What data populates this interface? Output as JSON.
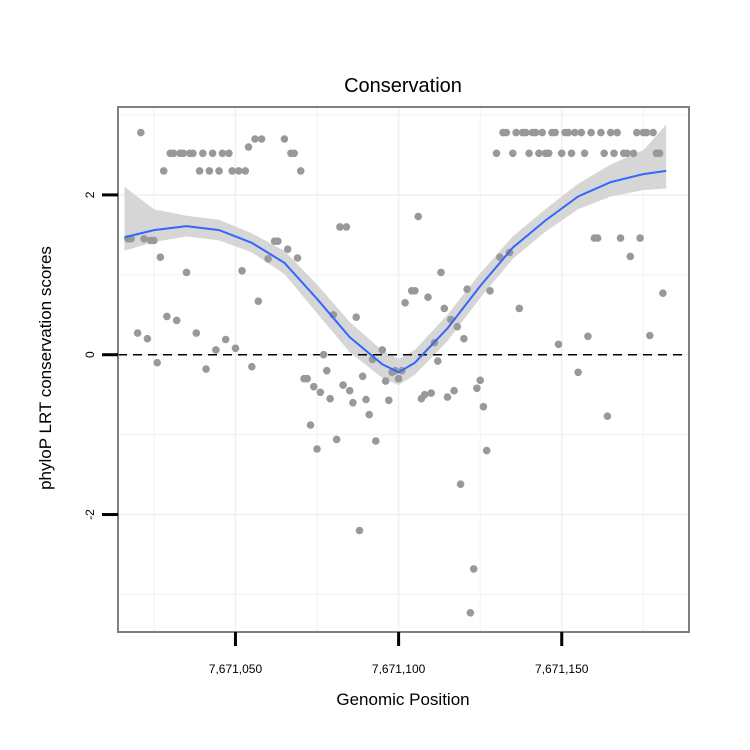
{
  "chart_data": {
    "type": "scatter",
    "title": "Conservation",
    "xlabel": "Genomic Position",
    "ylabel": "phyloP LRT conservation scores",
    "xlim": [
      7671014,
      7671189
    ],
    "ylim": [
      -3.47,
      3.1
    ],
    "x_ticks": [
      7671050,
      7671100,
      7671150
    ],
    "x_tick_labels": [
      "7,671,050",
      "7,671,100",
      "7,671,150"
    ],
    "y_ticks": [
      -2,
      0,
      2
    ],
    "y_tick_labels": [
      "-2",
      "0",
      "2"
    ],
    "grid": true,
    "reference_line": {
      "y": 0,
      "style": "dashed"
    },
    "colors": {
      "points": "#999999",
      "smooth": "#3366ff",
      "ribbon": "#d6d6d6",
      "grid": "#f0f0f0",
      "panel_border": "#7f7f7f",
      "axis": "#000000"
    },
    "points": [
      [
        7671017,
        1.45
      ],
      [
        7671018,
        1.45
      ],
      [
        7671020,
        0.27
      ],
      [
        7671021,
        2.78
      ],
      [
        7671022,
        1.45
      ],
      [
        7671023,
        0.2
      ],
      [
        7671024,
        1.43
      ],
      [
        7671025,
        1.43
      ],
      [
        7671026,
        -0.1
      ],
      [
        7671027,
        1.22
      ],
      [
        7671028,
        2.3
      ],
      [
        7671029,
        0.48
      ],
      [
        7671030,
        2.52
      ],
      [
        7671031,
        2.52
      ],
      [
        7671032,
        0.43
      ],
      [
        7671033,
        2.52
      ],
      [
        7671034,
        2.52
      ],
      [
        7671035,
        1.03
      ],
      [
        7671036,
        2.52
      ],
      [
        7671037,
        2.52
      ],
      [
        7671038,
        0.27
      ],
      [
        7671039,
        2.3
      ],
      [
        7671040,
        2.52
      ],
      [
        7671041,
        -0.18
      ],
      [
        7671042,
        2.3
      ],
      [
        7671043,
        2.52
      ],
      [
        7671044,
        0.06
      ],
      [
        7671045,
        2.3
      ],
      [
        7671046,
        2.52
      ],
      [
        7671047,
        0.19
      ],
      [
        7671048,
        2.52
      ],
      [
        7671049,
        2.3
      ],
      [
        7671050,
        0.08
      ],
      [
        7671051,
        2.3
      ],
      [
        7671052,
        1.05
      ],
      [
        7671053,
        2.3
      ],
      [
        7671054,
        2.6
      ],
      [
        7671055,
        -0.15
      ],
      [
        7671056,
        2.7
      ],
      [
        7671057,
        0.67
      ],
      [
        7671058,
        2.7
      ],
      [
        7671060,
        1.2
      ],
      [
        7671062,
        1.42
      ],
      [
        7671063,
        1.42
      ],
      [
        7671065,
        2.7
      ],
      [
        7671066,
        1.32
      ],
      [
        7671067,
        2.52
      ],
      [
        7671068,
        2.52
      ],
      [
        7671069,
        1.21
      ],
      [
        7671070,
        2.3
      ],
      [
        7671071,
        -0.3
      ],
      [
        7671072,
        -0.3
      ],
      [
        7671073,
        -0.88
      ],
      [
        7671074,
        -0.4
      ],
      [
        7671075,
        -1.18
      ],
      [
        7671076,
        -0.47
      ],
      [
        7671077,
        0.0
      ],
      [
        7671078,
        -0.2
      ],
      [
        7671079,
        -0.55
      ],
      [
        7671080,
        0.5
      ],
      [
        7671081,
        -1.06
      ],
      [
        7671082,
        1.6
      ],
      [
        7671083,
        -0.38
      ],
      [
        7671084,
        1.6
      ],
      [
        7671085,
        -0.45
      ],
      [
        7671086,
        -0.6
      ],
      [
        7671087,
        0.47
      ],
      [
        7671088,
        -2.2
      ],
      [
        7671089,
        -0.27
      ],
      [
        7671090,
        -0.56
      ],
      [
        7671091,
        -0.75
      ],
      [
        7671092,
        -0.06
      ],
      [
        7671093,
        -1.08
      ],
      [
        7671095,
        0.06
      ],
      [
        7671096,
        -0.33
      ],
      [
        7671097,
        -0.57
      ],
      [
        7671098,
        -0.22
      ],
      [
        7671099,
        -0.2
      ],
      [
        7671100,
        -0.3
      ],
      [
        7671101,
        -0.2
      ],
      [
        7671102,
        0.65
      ],
      [
        7671104,
        0.8
      ],
      [
        7671105,
        0.8
      ],
      [
        7671106,
        1.73
      ],
      [
        7671107,
        -0.55
      ],
      [
        7671108,
        -0.5
      ],
      [
        7671109,
        0.72
      ],
      [
        7671110,
        -0.48
      ],
      [
        7671111,
        0.15
      ],
      [
        7671112,
        -0.08
      ],
      [
        7671113,
        1.03
      ],
      [
        7671114,
        0.58
      ],
      [
        7671115,
        -0.53
      ],
      [
        7671116,
        0.44
      ],
      [
        7671117,
        -0.45
      ],
      [
        7671118,
        0.35
      ],
      [
        7671119,
        -1.62
      ],
      [
        7671120,
        0.2
      ],
      [
        7671121,
        0.82
      ],
      [
        7671122,
        -3.23
      ],
      [
        7671123,
        -2.68
      ],
      [
        7671124,
        -0.42
      ],
      [
        7671125,
        -0.32
      ],
      [
        7671126,
        -0.65
      ],
      [
        7671127,
        -1.2
      ],
      [
        7671128,
        0.8
      ],
      [
        7671130,
        2.52
      ],
      [
        7671131,
        1.22
      ],
      [
        7671132,
        2.78
      ],
      [
        7671133,
        2.78
      ],
      [
        7671134,
        1.28
      ],
      [
        7671135,
        2.52
      ],
      [
        7671136,
        2.78
      ],
      [
        7671137,
        0.58
      ],
      [
        7671138,
        2.78
      ],
      [
        7671139,
        2.78
      ],
      [
        7671140,
        2.52
      ],
      [
        7671141,
        2.78
      ],
      [
        7671142,
        2.78
      ],
      [
        7671143,
        2.52
      ],
      [
        7671144,
        2.78
      ],
      [
        7671145,
        2.52
      ],
      [
        7671146,
        2.52
      ],
      [
        7671147,
        2.78
      ],
      [
        7671148,
        2.78
      ],
      [
        7671149,
        0.13
      ],
      [
        7671150,
        2.52
      ],
      [
        7671151,
        2.78
      ],
      [
        7671152,
        2.78
      ],
      [
        7671153,
        2.52
      ],
      [
        7671154,
        2.78
      ],
      [
        7671155,
        -0.22
      ],
      [
        7671156,
        2.78
      ],
      [
        7671157,
        2.52
      ],
      [
        7671158,
        0.23
      ],
      [
        7671159,
        2.78
      ],
      [
        7671160,
        1.46
      ],
      [
        7671161,
        1.46
      ],
      [
        7671162,
        2.78
      ],
      [
        7671163,
        2.52
      ],
      [
        7671164,
        -0.77
      ],
      [
        7671165,
        2.78
      ],
      [
        7671166,
        2.52
      ],
      [
        7671167,
        2.78
      ],
      [
        7671168,
        1.46
      ],
      [
        7671169,
        2.52
      ],
      [
        7671170,
        2.52
      ],
      [
        7671171,
        1.23
      ],
      [
        7671172,
        2.52
      ],
      [
        7671173,
        2.78
      ],
      [
        7671174,
        1.46
      ],
      [
        7671175,
        2.78
      ],
      [
        7671176,
        2.78
      ],
      [
        7671177,
        0.24
      ],
      [
        7671178,
        2.78
      ],
      [
        7671179,
        2.52
      ],
      [
        7671180,
        2.52
      ],
      [
        7671181,
        0.77
      ]
    ],
    "smooth": {
      "x": [
        7671016,
        7671025,
        7671035,
        7671045,
        7671055,
        7671065,
        7671075,
        7671085,
        7671095,
        7671100,
        7671105,
        7671115,
        7671125,
        7671135,
        7671145,
        7671155,
        7671165,
        7671175,
        7671182
      ],
      "y": [
        1.47,
        1.56,
        1.61,
        1.56,
        1.4,
        1.15,
        0.7,
        0.22,
        -0.12,
        -0.22,
        -0.1,
        0.33,
        0.86,
        1.34,
        1.68,
        1.98,
        2.16,
        2.26,
        2.3
      ],
      "lower": [
        1.3,
        1.41,
        1.48,
        1.43,
        1.28,
        1.01,
        0.52,
        0.03,
        -0.29,
        -0.38,
        -0.25,
        0.17,
        0.71,
        1.2,
        1.54,
        1.82,
        1.98,
        2.06,
        2.08
      ],
      "upper": [
        2.1,
        1.82,
        1.74,
        1.69,
        1.52,
        1.3,
        0.88,
        0.41,
        0.05,
        -0.05,
        0.06,
        0.5,
        1.02,
        1.48,
        1.82,
        2.14,
        2.38,
        2.56,
        2.88
      ]
    }
  }
}
